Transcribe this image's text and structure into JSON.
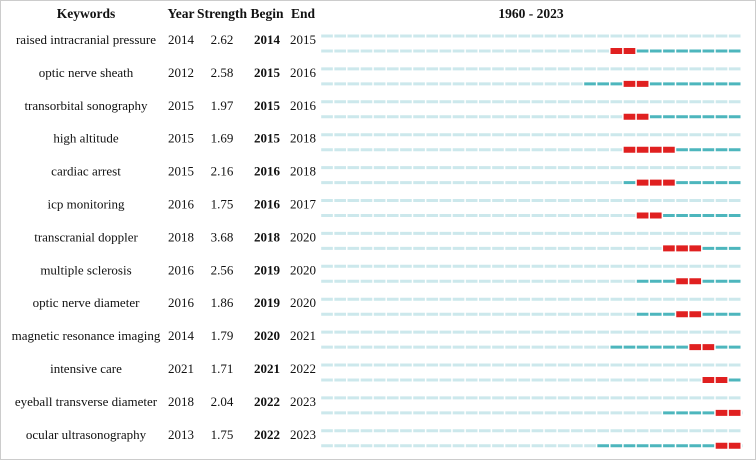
{
  "header": {
    "keywords": "Keywords",
    "year": "Year",
    "strength": "Strength",
    "begin": "Begin",
    "end": "End"
  },
  "timeline": {
    "label": "1960 - 2023",
    "start": 1960,
    "end": 2023
  },
  "rows": [
    {
      "keyword": "raised intracranial pressure",
      "year": 2014,
      "strength": 2.62,
      "begin": 2014,
      "end": 2015
    },
    {
      "keyword": "optic nerve sheath",
      "year": 2012,
      "strength": 2.58,
      "begin": 2015,
      "end": 2016
    },
    {
      "keyword": "transorbital sonography",
      "year": 2015,
      "strength": 1.97,
      "begin": 2015,
      "end": 2016
    },
    {
      "keyword": "high altitude",
      "year": 2015,
      "strength": 1.69,
      "begin": 2015,
      "end": 2018
    },
    {
      "keyword": "cardiac arrest",
      "year": 2015,
      "strength": 2.16,
      "begin": 2016,
      "end": 2018
    },
    {
      "keyword": "icp monitoring",
      "year": 2016,
      "strength": 1.75,
      "begin": 2016,
      "end": 2017
    },
    {
      "keyword": "transcranial doppler",
      "year": 2018,
      "strength": 3.68,
      "begin": 2018,
      "end": 2020
    },
    {
      "keyword": "multiple sclerosis",
      "year": 2016,
      "strength": 2.56,
      "begin": 2019,
      "end": 2020
    },
    {
      "keyword": "optic nerve diameter",
      "year": 2016,
      "strength": 1.86,
      "begin": 2019,
      "end": 2020
    },
    {
      "keyword": "magnetic resonance imaging",
      "year": 2014,
      "strength": 1.79,
      "begin": 2020,
      "end": 2021
    },
    {
      "keyword": "intensive care",
      "year": 2021,
      "strength": 1.71,
      "begin": 2021,
      "end": 2022
    },
    {
      "keyword": "eyeball transverse diameter",
      "year": 2018,
      "strength": 2.04,
      "begin": 2022,
      "end": 2023
    },
    {
      "keyword": "ocular ultrasonography",
      "year": 2013,
      "strength": 1.75,
      "begin": 2022,
      "end": 2023
    }
  ]
}
